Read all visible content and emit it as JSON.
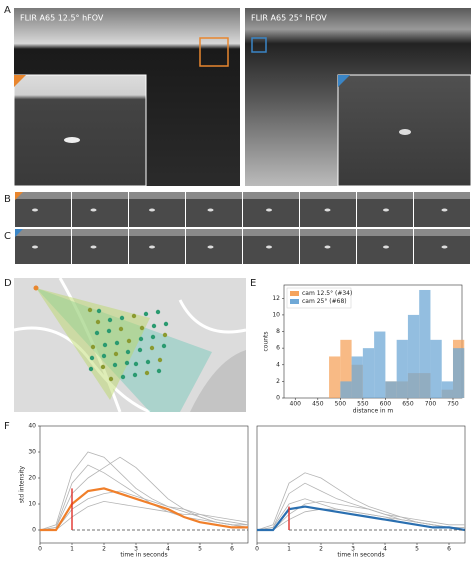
{
  "panel_labels": [
    "A",
    "B",
    "C",
    "D",
    "E",
    "F"
  ],
  "panel_a": {
    "left_title": "FLIR A65 12.5° hFOV",
    "right_title": "FLIR A65 25° hFOV"
  },
  "chart_data": [
    {
      "type": "histogram",
      "bins": [
        475,
        500,
        525,
        550,
        575,
        600,
        625,
        650,
        675,
        700,
        725,
        750,
        775
      ],
      "series": [
        {
          "name": "cam 12.5° (#34)",
          "color": "#f5a35c",
          "values": [
            5,
            7,
            4,
            0,
            0,
            2,
            2,
            3,
            3,
            0,
            1,
            7
          ]
        },
        {
          "name": "cam 25° (#68)",
          "color": "#6fa8d6",
          "values": [
            0,
            2,
            5,
            6,
            8,
            2,
            7,
            10,
            13,
            7,
            2,
            6
          ]
        }
      ],
      "xlim": [
        375,
        770
      ],
      "xticks": [
        400,
        450,
        500,
        550,
        600,
        650,
        700,
        750
      ],
      "ylim": [
        0,
        13.6
      ],
      "yticks": [
        0,
        2,
        4,
        6,
        8,
        10,
        12
      ],
      "xlabel": "distance in m",
      "ylabel": "counts",
      "legend": "upper left"
    },
    {
      "type": "line",
      "x": [
        0,
        0.5,
        1,
        1.5,
        2,
        2.5,
        3,
        3.5,
        4,
        4.5,
        5,
        5.5,
        6,
        6.5
      ],
      "series": [
        {
          "color": "#b4b4b4",
          "values": [
            0,
            1,
            18,
            25,
            22,
            18,
            14,
            10,
            7,
            5,
            4,
            3,
            2,
            2
          ]
        },
        {
          "color": "#b4b4b4",
          "values": [
            0,
            0,
            8,
            12,
            14,
            15,
            13,
            11,
            9,
            7,
            5,
            3,
            2,
            1
          ]
        },
        {
          "color": "#b4b4b4",
          "values": [
            0,
            2,
            22,
            30,
            28,
            22,
            16,
            12,
            9,
            8,
            6,
            4,
            3,
            2
          ]
        },
        {
          "color": "#b4b4b4",
          "values": [
            0,
            0,
            5,
            9,
            11,
            10,
            9,
            8,
            7,
            6,
            6,
            5,
            4,
            3
          ]
        },
        {
          "color": "#b4b4b4",
          "values": [
            0,
            1,
            14,
            20,
            24,
            28,
            24,
            18,
            12,
            8,
            5,
            3,
            2,
            1
          ]
        },
        {
          "color": "#f07f2a",
          "values": [
            0,
            0,
            10,
            15,
            16,
            14,
            12,
            10,
            8,
            5,
            3,
            2,
            1,
            1
          ]
        }
      ],
      "marker": {
        "x": 1,
        "y": 16,
        "color": "#e0302a"
      },
      "xlim": [
        0,
        6.5
      ],
      "xticks": [
        0,
        1,
        2,
        3,
        4,
        5,
        6
      ],
      "ylim": [
        -5,
        40
      ],
      "yticks": [
        0,
        10,
        20,
        30,
        40
      ],
      "xlabel": "time in seconds",
      "ylabel": "std intensity"
    },
    {
      "type": "line",
      "x": [
        0,
        0.5,
        1,
        1.5,
        2,
        2.5,
        3,
        3.5,
        4,
        4.5,
        5,
        5.5,
        6,
        6.5
      ],
      "series": [
        {
          "color": "#b4b4b4",
          "values": [
            0,
            1,
            14,
            18,
            15,
            12,
            10,
            8,
            6,
            4,
            3,
            2,
            1,
            1
          ]
        },
        {
          "color": "#b4b4b4",
          "values": [
            0,
            0,
            6,
            10,
            11,
            10,
            9,
            8,
            6,
            5,
            4,
            3,
            2,
            2
          ]
        },
        {
          "color": "#b4b4b4",
          "values": [
            0,
            1,
            10,
            12,
            10,
            8,
            7,
            6,
            5,
            3,
            2,
            1,
            1,
            0
          ]
        },
        {
          "color": "#b4b4b4",
          "values": [
            0,
            0,
            4,
            7,
            8,
            8,
            7,
            6,
            5,
            4,
            3,
            2,
            1,
            1
          ]
        },
        {
          "color": "#b4b4b4",
          "values": [
            0,
            2,
            18,
            22,
            20,
            16,
            12,
            9,
            7,
            5,
            3,
            2,
            1,
            0
          ]
        },
        {
          "color": "#2a6fb0",
          "values": [
            0,
            0,
            8,
            9,
            8,
            7,
            6,
            5,
            4,
            3,
            2,
            1,
            1,
            0
          ]
        }
      ],
      "marker": {
        "x": 1,
        "y": 9,
        "color": "#e0302a"
      },
      "xlim": [
        0,
        6.5
      ],
      "xticks": [
        0,
        1,
        2,
        3,
        4,
        5,
        6
      ],
      "ylim": [
        -5,
        40
      ],
      "xlabel": "time in seconds"
    }
  ]
}
